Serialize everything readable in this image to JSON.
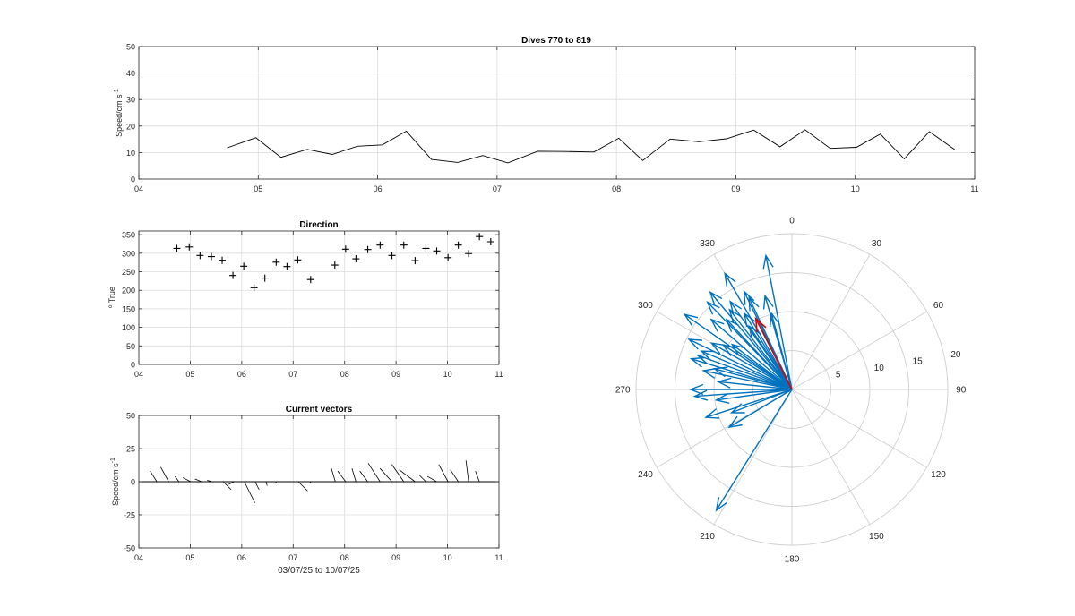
{
  "figure": {
    "colors": {
      "axis": "#262626",
      "grid": "#dcdcdc",
      "polar_grid": "#cfcfcf",
      "polar_label": "#262626",
      "vector": "#0072BD",
      "mean": "#e00000",
      "line": "#000000"
    }
  },
  "chart_data": [
    {
      "type": "line",
      "title": "Dives 770 to 819",
      "xlabel": "",
      "ylabel": "Speed/cm s",
      "ylabel_exponent": "-1",
      "xlim": [
        4,
        11
      ],
      "ylim": [
        0,
        50
      ],
      "x_ticks": [
        4,
        5,
        6,
        7,
        8,
        9,
        10,
        11
      ],
      "x_tick_labels": [
        "04",
        "05",
        "06",
        "07",
        "08",
        "09",
        "10",
        "11"
      ],
      "y_ticks": [
        0,
        10,
        20,
        30,
        40,
        50
      ],
      "y_tick_labels": [
        "0",
        "10",
        "20",
        "30",
        "40",
        "50"
      ],
      "grid": true,
      "x": [
        4.74,
        4.98,
        5.19,
        5.41,
        5.62,
        5.83,
        6.04,
        6.24,
        6.45,
        6.67,
        6.88,
        7.09,
        7.34,
        7.58,
        7.81,
        8.02,
        8.22,
        8.45,
        8.69,
        8.92,
        9.15,
        9.37,
        9.58,
        9.79,
        10.01,
        10.21,
        10.41,
        10.62,
        10.84
      ],
      "y": [
        11.8,
        15.6,
        8.2,
        11.2,
        9.3,
        12.4,
        12.9,
        18.1,
        7.4,
        6.3,
        8.9,
        6.1,
        10.5,
        10.4,
        10.2,
        15.4,
        7.0,
        15.1,
        14.1,
        15.2,
        18.5,
        12.2,
        18.6,
        11.6,
        12.0,
        17.0,
        7.6,
        17.9,
        10.9
      ]
    },
    {
      "type": "scatter",
      "title": "Direction",
      "xlabel": "",
      "ylabel": "º True",
      "marker": "+",
      "xlim": [
        4,
        11
      ],
      "ylim": [
        0,
        360
      ],
      "x_ticks": [
        4,
        5,
        6,
        7,
        8,
        9,
        10,
        11
      ],
      "x_tick_labels": [
        "04",
        "05",
        "06",
        "07",
        "08",
        "09",
        "10",
        "11"
      ],
      "y_ticks": [
        0,
        50,
        100,
        150,
        200,
        250,
        300,
        350
      ],
      "y_tick_labels": [
        "0",
        "50",
        "100",
        "150",
        "200",
        "250",
        "300",
        "350"
      ],
      "grid": true,
      "x": [
        4.74,
        4.98,
        5.19,
        5.41,
        5.62,
        5.83,
        6.04,
        6.24,
        6.45,
        6.67,
        6.88,
        7.09,
        7.34,
        7.81,
        8.02,
        8.22,
        8.45,
        8.69,
        8.92,
        9.15,
        9.37,
        9.58,
        9.79,
        10.01,
        10.21,
        10.41,
        10.62,
        10.84
      ],
      "y": [
        313,
        317,
        294,
        291,
        281,
        240,
        265,
        207,
        233,
        276,
        264,
        282,
        229,
        268,
        311,
        285,
        310,
        322,
        294,
        322,
        280,
        313,
        306,
        288,
        322,
        299,
        345,
        331
      ]
    },
    {
      "type": "line",
      "subtype": "stick-vectors",
      "title": "Current vectors",
      "xlabel": "03/07/25 to 10/07/25",
      "ylabel": "Speed/cm s",
      "ylabel_exponent": "-1",
      "xlim": [
        4,
        11
      ],
      "ylim": [
        -50,
        50
      ],
      "x_ticks": [
        4,
        5,
        6,
        7,
        8,
        9,
        10,
        11
      ],
      "x_tick_labels": [
        "04",
        "05",
        "06",
        "07",
        "08",
        "09",
        "10",
        "11"
      ],
      "y_ticks": [
        -50,
        -25,
        0,
        25,
        50
      ],
      "y_tick_labels": [
        "-50",
        "-25",
        "0",
        "25",
        "50"
      ],
      "grid": true,
      "x": [
        4.35,
        4.58,
        4.78,
        5.01,
        5.22,
        5.43,
        5.64,
        5.85,
        6.05,
        6.26,
        6.47,
        6.68,
        6.89,
        7.1,
        7.35,
        7.82,
        8.02,
        8.22,
        8.45,
        8.69,
        8.92,
        9.15,
        9.37,
        9.58,
        9.79,
        10.01,
        10.21,
        10.41,
        10.62
      ],
      "y": [
        8,
        11,
        4,
        3,
        2,
        1,
        -6,
        -2,
        -16,
        -6,
        -3,
        -1,
        0,
        -7,
        -1,
        10,
        8,
        10,
        8,
        14,
        10,
        13,
        9,
        5,
        4,
        13,
        9,
        16,
        8
      ],
      "u": [
        -5,
        -6,
        -3,
        -6,
        -5,
        -4,
        6,
        -4,
        8,
        3,
        1,
        -1,
        -3,
        7,
        -1,
        -3,
        -6,
        -3,
        -6,
        -9,
        -9,
        -9,
        -12,
        -5,
        -7,
        -7,
        -6,
        -2,
        -3
      ]
    },
    {
      "type": "scatter",
      "subtype": "polar-compass",
      "title": "",
      "angle_ticks": [
        0,
        30,
        60,
        90,
        120,
        150,
        180,
        210,
        240,
        270,
        300,
        330
      ],
      "angle_tick_labels": [
        "0",
        "30",
        "60",
        "90",
        "120",
        "150",
        "180",
        "210",
        "240",
        "270",
        "300",
        "330"
      ],
      "r_ticks": [
        5,
        10,
        15,
        20
      ],
      "r_tick_labels": [
        "5",
        "10",
        "15",
        "20"
      ],
      "rlim": [
        0,
        20
      ],
      "r_label_angle": 80,
      "direction": [
        349,
        330,
        320,
        325,
        334,
        344,
        316,
        328,
        305,
        311,
        296,
        293,
        287,
        303,
        270,
        276,
        282,
        290,
        300,
        307,
        285,
        266,
        262,
        252,
        239,
        249,
        212,
        317,
        322,
        326,
        345,
        335
      ],
      "speed": [
        17.5,
        17.2,
        16.3,
        13.8,
        14.0,
        12.5,
        15.6,
        11.5,
        16.8,
        13.7,
        14.7,
        12.6,
        13.5,
        10.5,
        13.0,
        9.5,
        11.6,
        12.9,
        11.9,
        9.6,
        10.3,
        12.5,
        9.8,
        11.6,
        9.4,
        8.3,
        18.3,
        12.3,
        13.0,
        9.8,
        10.1,
        13.0
      ],
      "mean_direction": 333,
      "mean_speed": 10.2
    }
  ]
}
